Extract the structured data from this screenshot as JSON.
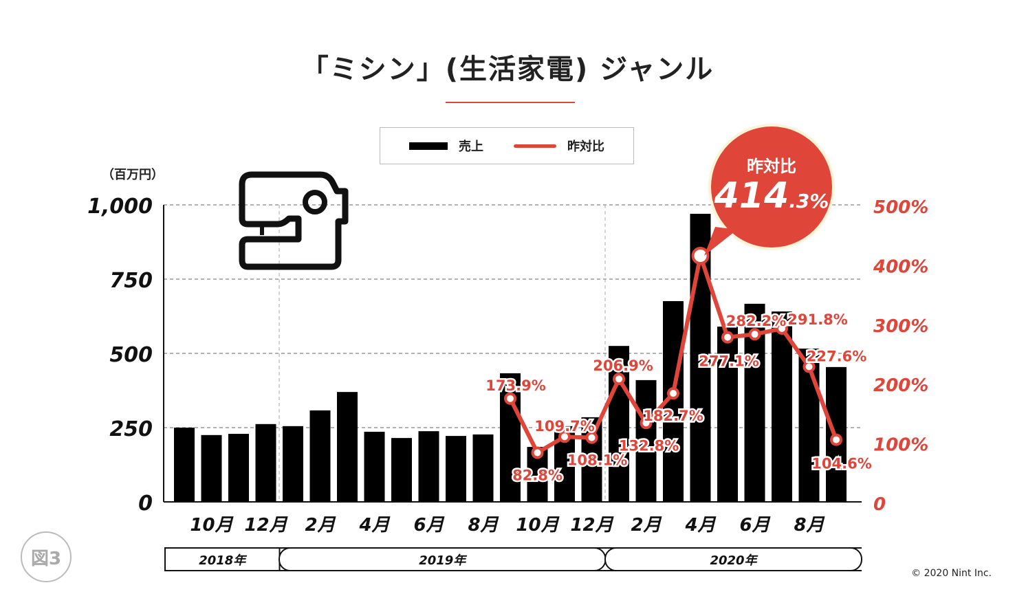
{
  "title": "「ミシン」(生活家電) ジャンル",
  "figure_label": "図3",
  "copyright": "© 2020 Nint Inc.",
  "unit_label": "（百万円）",
  "callout": {
    "label": "昨対比",
    "value_main": "414",
    "value_decimal": ".3%"
  },
  "colors": {
    "bar": "#000000",
    "line": "#e0453a"
  },
  "chart_data": {
    "type": "bar+line",
    "title": "「ミシン」(生活家電) ジャンル",
    "legend": [
      "売上",
      "昨対比"
    ],
    "legend_placement": "top-center",
    "left_axis": {
      "label": "（百万円）",
      "ticks": [
        "0",
        "250",
        "500",
        "750",
        "1,000"
      ],
      "range": [
        0,
        1000
      ]
    },
    "right_axis": {
      "ticks": [
        "0",
        "100%",
        "200%",
        "300%",
        "400%",
        "500%"
      ],
      "range": [
        0,
        500
      ]
    },
    "months": [
      "2018-09",
      "2018-10",
      "2018-11",
      "2018-12",
      "2019-01",
      "2019-02",
      "2019-03",
      "2019-04",
      "2019-05",
      "2019-06",
      "2019-07",
      "2019-08",
      "2019-09",
      "2019-10",
      "2019-11",
      "2019-12",
      "2020-01",
      "2020-02",
      "2020-03",
      "2020-04",
      "2020-05",
      "2020-06",
      "2020-07",
      "2020-08",
      "2020-09"
    ],
    "month_tick_labels": [
      {
        "index": 1,
        "label": "10月"
      },
      {
        "index": 3,
        "label": "12月"
      },
      {
        "index": 5,
        "label": "2月"
      },
      {
        "index": 7,
        "label": "4月"
      },
      {
        "index": 9,
        "label": "6月"
      },
      {
        "index": 11,
        "label": "8月"
      },
      {
        "index": 13,
        "label": "10月"
      },
      {
        "index": 15,
        "label": "12月"
      },
      {
        "index": 17,
        "label": "2月"
      },
      {
        "index": 19,
        "label": "4月"
      },
      {
        "index": 21,
        "label": "6月"
      },
      {
        "index": 23,
        "label": "8月"
      }
    ],
    "years": [
      {
        "label": "2018年",
        "start": 0,
        "end": 3
      },
      {
        "label": "2019年",
        "start": 4,
        "end": 15
      },
      {
        "label": "2020年",
        "start": 16,
        "end": 24
      }
    ],
    "series": [
      {
        "name": "売上",
        "type": "bar",
        "values": [
          250,
          225,
          229,
          262,
          255,
          308,
          370,
          236,
          215,
          238,
          222,
          227,
          433,
          185,
          255,
          285,
          525,
          410,
          676,
          970,
          590,
          667,
          641,
          516,
          454
        ]
      },
      {
        "name": "昨対比",
        "type": "line",
        "start_index": 12,
        "values": [
          173.9,
          82.8,
          109.7,
          108.1,
          206.9,
          132.8,
          182.7,
          414.3,
          277.1,
          282.2,
          291.8,
          227.6,
          104.6
        ],
        "labels": [
          "173.9%",
          "82.8%",
          "109.7%",
          "108.1%",
          "206.9%",
          "132.8%",
          "182.7%",
          "",
          "277.1%",
          "282.2%",
          "291.8%",
          "227.6%",
          "104.6%"
        ]
      }
    ]
  }
}
